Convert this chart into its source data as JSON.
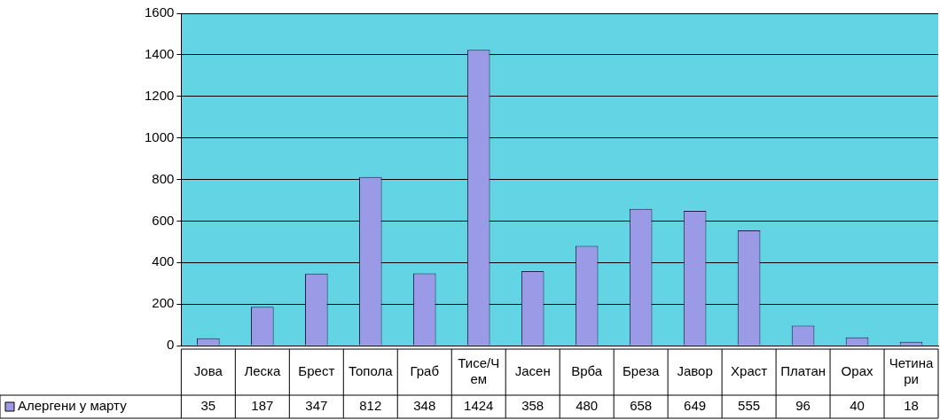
{
  "chart_data": {
    "type": "bar",
    "categories": [
      "Јова",
      "Леска",
      "Брест",
      "Топола",
      "Граб",
      "Тисе/Чем",
      "Јасен",
      "Врба",
      "Бреза",
      "Јавор",
      "Храст",
      "Платан",
      "Орах",
      "Четинари"
    ],
    "series": [
      {
        "name": "Алергени у марту",
        "color": "#9a9ae6",
        "values": [
          35,
          187,
          347,
          812,
          348,
          1424,
          358,
          480,
          658,
          649,
          555,
          96,
          40,
          18
        ]
      }
    ],
    "ylim": [
      0,
      1600
    ],
    "yticks": [
      0,
      200,
      400,
      600,
      800,
      1000,
      1200,
      1400,
      1600
    ],
    "grid": "y",
    "legend": "bottom left",
    "data_labels": true
  }
}
